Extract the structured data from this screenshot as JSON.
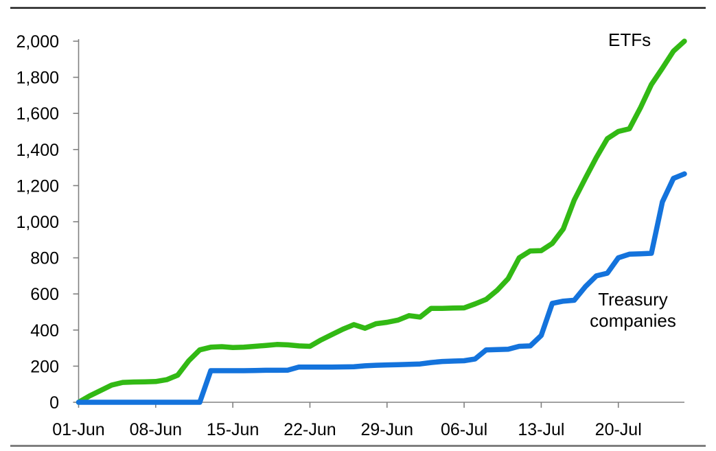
{
  "page": {
    "background": "#ffffff"
  },
  "rules": {
    "top_color": "#3f3f3f",
    "bottom_color": "#7f7f7f"
  },
  "annotations": {
    "etfs": "ETFs",
    "treasury_line1": "Treasury",
    "treasury_line2": "companies"
  },
  "chart_data": {
    "type": "line",
    "title": "",
    "xlabel": "",
    "ylabel": "",
    "grid": false,
    "legend": "inline end-of-line labels",
    "axis_color": "#808080",
    "text_color": "#000000",
    "ylim": [
      0,
      2000
    ],
    "categories": [
      "01-Jun",
      "02-Jun",
      "03-Jun",
      "04-Jun",
      "05-Jun",
      "06-Jun",
      "07-Jun",
      "08-Jun",
      "09-Jun",
      "10-Jun",
      "11-Jun",
      "12-Jun",
      "13-Jun",
      "14-Jun",
      "15-Jun",
      "16-Jun",
      "17-Jun",
      "18-Jun",
      "19-Jun",
      "20-Jun",
      "21-Jun",
      "22-Jun",
      "23-Jun",
      "24-Jun",
      "25-Jun",
      "26-Jun",
      "27-Jun",
      "28-Jun",
      "29-Jun",
      "30-Jun",
      "01-Jul",
      "02-Jul",
      "03-Jul",
      "04-Jul",
      "05-Jul",
      "06-Jul",
      "07-Jul",
      "08-Jul",
      "09-Jul",
      "10-Jul",
      "11-Jul",
      "12-Jul",
      "13-Jul",
      "14-Jul",
      "15-Jul",
      "16-Jul",
      "17-Jul",
      "18-Jul",
      "19-Jul",
      "20-Jul",
      "21-Jul",
      "22-Jul",
      "23-Jul",
      "24-Jul",
      "25-Jul",
      "26-Jul"
    ],
    "series": [
      {
        "name": "ETFs",
        "color": "#32B914",
        "values": [
          0,
          35,
          65,
          95,
          110,
          112,
          113,
          115,
          125,
          150,
          230,
          290,
          305,
          308,
          303,
          305,
          310,
          315,
          320,
          318,
          312,
          310,
          345,
          375,
          405,
          430,
          410,
          435,
          443,
          455,
          480,
          472,
          520,
          520,
          522,
          523,
          545,
          570,
          620,
          685,
          800,
          838,
          840,
          880,
          960,
          1120,
          1240,
          1355,
          1460,
          1500,
          1515,
          1630,
          1760,
          1850,
          1945,
          2000
        ]
      },
      {
        "name": "Treasury companies",
        "color": "#1473DC",
        "values": [
          0,
          0,
          0,
          0,
          0,
          0,
          0,
          0,
          0,
          0,
          0,
          0,
          175,
          175,
          175,
          175,
          176,
          177,
          177,
          178,
          195,
          195,
          195,
          195,
          196,
          197,
          202,
          205,
          207,
          208,
          210,
          212,
          220,
          226,
          228,
          230,
          240,
          290,
          292,
          294,
          310,
          312,
          370,
          548,
          560,
          565,
          640,
          700,
          715,
          800,
          820,
          822,
          825,
          1110,
          1240,
          1265
        ]
      }
    ],
    "y_ticks": [
      0,
      200,
      400,
      600,
      800,
      1000,
      1200,
      1400,
      1600,
      1800,
      2000
    ],
    "y_tick_labels": [
      "0",
      "200",
      "400",
      "600",
      "800",
      "1,000",
      "1,200",
      "1,400",
      "1,600",
      "1,800",
      "2,000"
    ],
    "x_ticks": [
      {
        "label": "01-Jun",
        "index": 0
      },
      {
        "label": "08-Jun",
        "index": 7
      },
      {
        "label": "15-Jun",
        "index": 14
      },
      {
        "label": "22-Jun",
        "index": 21
      },
      {
        "label": "29-Jun",
        "index": 28
      },
      {
        "label": "06-Jul",
        "index": 35
      },
      {
        "label": "13-Jul",
        "index": 42
      },
      {
        "label": "20-Jul",
        "index": 49
      }
    ]
  }
}
